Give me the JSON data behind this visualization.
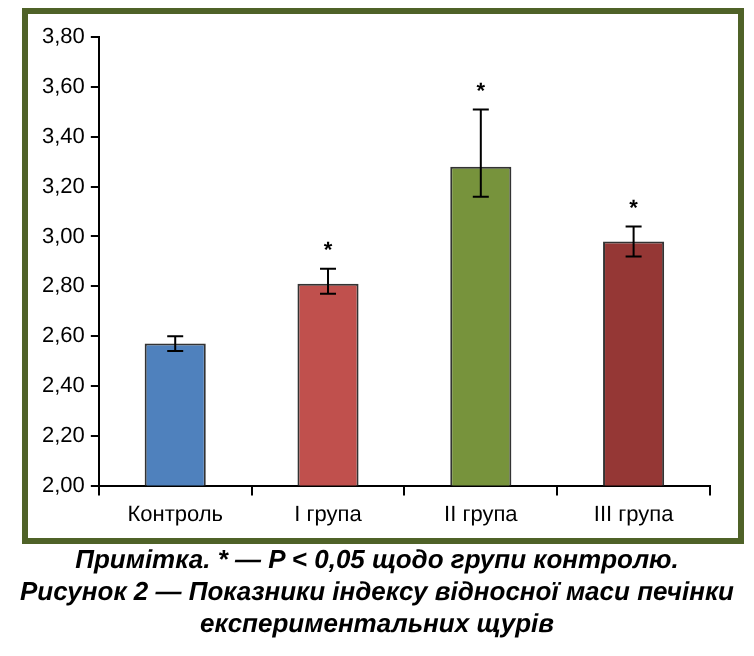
{
  "chart_data": {
    "type": "bar",
    "categories": [
      "Контроль",
      "I група",
      "II група",
      "III група"
    ],
    "values": [
      2.57,
      2.81,
      3.28,
      2.98
    ],
    "colors": [
      "#4f81bd",
      "#c0504d",
      "#77933c",
      "#953735"
    ],
    "errors": [
      [
        2.54,
        2.6
      ],
      [
        2.77,
        2.87
      ],
      [
        3.16,
        3.51
      ],
      [
        2.92,
        3.04
      ]
    ],
    "ylim": [
      2,
      3.8
    ],
    "yticks": [
      {
        "value": 2,
        "label": "2,00"
      },
      {
        "value": 2.2,
        "label": "2,20"
      },
      {
        "value": 2.4,
        "label": "2,40"
      },
      {
        "value": 2.6,
        "label": "2,60"
      },
      {
        "value": 2.8,
        "label": "2,80"
      },
      {
        "value": 3,
        "label": "3,00"
      },
      {
        "value": 3.2,
        "label": "3,20"
      },
      {
        "value": 3.4,
        "label": "3,40"
      },
      {
        "value": 3.6,
        "label": "3,60"
      },
      {
        "value": 3.8,
        "label": "3,80"
      }
    ],
    "grid": false,
    "legend": false,
    "annotations": [
      {
        "text": "*",
        "x": "I група",
        "y": 2.87
      },
      {
        "text": "*",
        "x": "II група",
        "y": 3.51
      },
      {
        "text": "*",
        "x": "III група",
        "y": 3.04
      },
      "Примітка. * — P < 0,05 щодо групи контролю.",
      "Рисунок 2 — Показники індексу відносної маси печінки експериментальних щурів"
    ]
  }
}
